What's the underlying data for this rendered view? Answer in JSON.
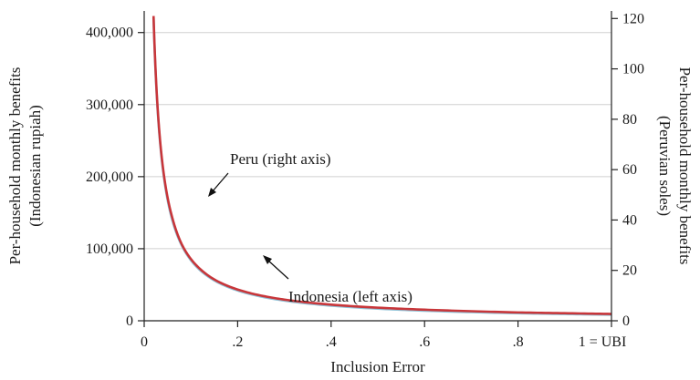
{
  "chart_data": {
    "type": "line",
    "xlabel": "Inclusion Error",
    "ylabel_left": [
      "Per-household monthly benefits",
      "(Indonesian rupiah)"
    ],
    "ylabel_right": [
      "Per-household monthly benefits",
      "(Peruvian soles)"
    ],
    "xlim": [
      0,
      1
    ],
    "ylim_left": [
      0,
      430000
    ],
    "ylim_right": [
      0,
      123
    ],
    "grid": true,
    "x_ticks": [
      {
        "v": 0,
        "label": "0"
      },
      {
        "v": 0.2,
        "label": ".2"
      },
      {
        "v": 0.4,
        "label": ".4"
      },
      {
        "v": 0.6,
        "label": ".6"
      },
      {
        "v": 0.8,
        "label": ".8"
      },
      {
        "v": 1,
        "label": "1 = UBI"
      }
    ],
    "y_left_ticks": [
      {
        "v": 0,
        "label": "0"
      },
      {
        "v": 100000,
        "label": "100,000"
      },
      {
        "v": 200000,
        "label": "200,000"
      },
      {
        "v": 300000,
        "label": "300,000"
      },
      {
        "v": 400000,
        "label": "400,000"
      }
    ],
    "y_right_ticks": [
      {
        "v": 0,
        "label": "0"
      },
      {
        "v": 20,
        "label": "20"
      },
      {
        "v": 40,
        "label": "40"
      },
      {
        "v": 60,
        "label": "60"
      },
      {
        "v": 80,
        "label": "80"
      },
      {
        "v": 100,
        "label": "100"
      },
      {
        "v": 120,
        "label": "120"
      }
    ],
    "series": [
      {
        "name": "Indonesia (left axis)",
        "axis": "left",
        "color": "#8fc3d8",
        "x": [
          0.02,
          0.03,
          0.04,
          0.05,
          0.06,
          0.07,
          0.08,
          0.1,
          0.12,
          0.15,
          0.2,
          0.25,
          0.3,
          0.4,
          0.5,
          0.6,
          0.7,
          0.8,
          0.9,
          1.0
        ],
        "y": [
          420000,
          280000,
          210000,
          168000,
          140000,
          120000,
          105000,
          84000,
          70000,
          56000,
          42000,
          33600,
          28000,
          21000,
          16800,
          14000,
          12000,
          10500,
          9333,
          8400
        ]
      },
      {
        "name": "Peru (right axis)",
        "axis": "right",
        "color": "#c8363a",
        "x": [
          0.02,
          0.03,
          0.04,
          0.05,
          0.06,
          0.07,
          0.08,
          0.1,
          0.12,
          0.15,
          0.2,
          0.25,
          0.3,
          0.4,
          0.5,
          0.6,
          0.7,
          0.8,
          0.9,
          1.0
        ],
        "y": [
          121,
          81,
          61,
          49,
          41,
          35,
          30.5,
          24.5,
          20.5,
          16.4,
          12.4,
          10.0,
          8.4,
          6.4,
          5.2,
          4.4,
          3.8,
          3.3,
          3.0,
          2.7
        ]
      }
    ],
    "annotations": [
      {
        "text": "Peru (right axis)",
        "series": "Peru (right axis)",
        "at_x": 0.12
      },
      {
        "text": "Indonesia (left axis)",
        "series": "Indonesia (left axis)",
        "at_x": 0.24
      }
    ]
  }
}
